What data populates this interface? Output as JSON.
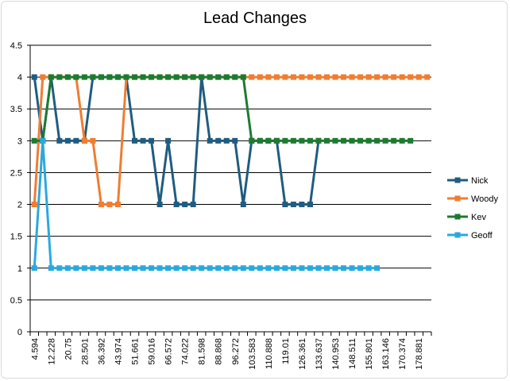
{
  "chart_data": {
    "type": "line",
    "title": "Lead Changes",
    "xlabel": "",
    "ylabel": "",
    "ylim": [
      0,
      4.5
    ],
    "yticks": [
      0,
      0.5,
      1,
      1.5,
      2,
      2.5,
      3,
      3.5,
      4,
      4.5
    ],
    "x_tick_labels": [
      "4.594",
      "12.228",
      "20.75",
      "28.501",
      "36.392",
      "43.974",
      "51.661",
      "59.016",
      "66.572",
      "74.022",
      "81.598",
      "88.868",
      "96.272",
      "103.583",
      "110.888",
      "119.01",
      "126.361",
      "133.637",
      "140.953",
      "148.511",
      "155.801",
      "163.146",
      "170.374",
      "178.881"
    ],
    "num_points": 48,
    "grid": "horizontal",
    "legend_position": "right",
    "series": [
      {
        "name": "Nick",
        "color": "#1f5c80",
        "values": [
          4,
          3,
          4,
          3,
          3,
          3,
          3,
          4,
          4,
          4,
          4,
          4,
          3,
          3,
          3,
          2,
          3,
          2,
          2,
          2,
          4,
          3,
          3,
          3,
          3,
          2,
          3,
          3,
          3,
          3,
          2,
          2,
          2,
          2,
          3
        ]
      },
      {
        "name": "Woody",
        "color": "#ef7d32",
        "values": [
          2,
          4,
          4,
          4,
          4,
          4,
          3,
          3,
          2,
          2,
          2,
          4,
          4,
          4,
          4,
          4,
          4,
          4,
          4,
          4,
          4,
          4,
          4,
          4,
          4,
          4,
          4,
          4,
          4,
          4,
          4,
          4,
          4,
          4,
          4,
          4,
          4,
          4,
          4,
          4,
          4,
          4,
          4,
          4,
          4,
          4,
          4,
          4
        ]
      },
      {
        "name": "Kev",
        "color": "#1e7a30",
        "values": [
          3,
          3,
          4,
          4,
          4,
          4,
          4,
          4,
          4,
          4,
          4,
          4,
          4,
          4,
          4,
          4,
          4,
          4,
          4,
          4,
          4,
          4,
          4,
          4,
          4,
          4,
          3,
          3,
          3,
          3,
          3,
          3,
          3,
          3,
          3,
          3,
          3,
          3,
          3,
          3,
          3,
          3,
          3,
          3,
          3,
          3
        ]
      },
      {
        "name": "Geoff",
        "color": "#2aa9df",
        "values": [
          1,
          3,
          1,
          1,
          1,
          1,
          1,
          1,
          1,
          1,
          1,
          1,
          1,
          1,
          1,
          1,
          1,
          1,
          1,
          1,
          1,
          1,
          1,
          1,
          1,
          1,
          1,
          1,
          1,
          1,
          1,
          1,
          1,
          1,
          1,
          1,
          1,
          1,
          1,
          1,
          1,
          1
        ]
      }
    ]
  }
}
